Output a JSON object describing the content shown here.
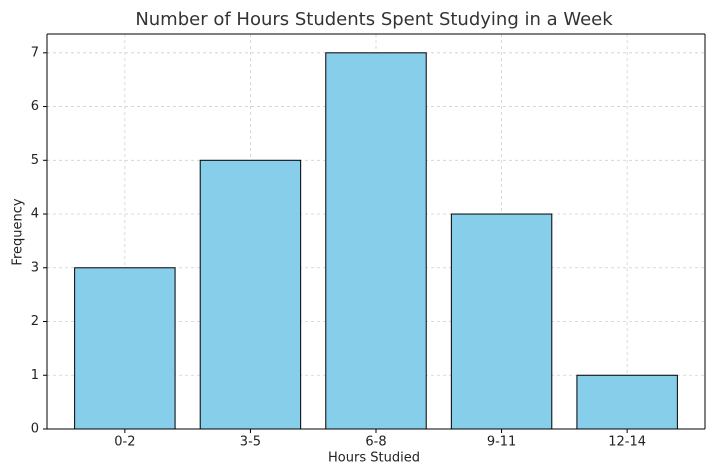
{
  "chart_data": {
    "type": "bar",
    "title": "Number of Hours Students Spent Studying in a Week",
    "x_label": "Hours Studied",
    "y_label": "Frequency",
    "categories": [
      "0-2",
      "3-5",
      "6-8",
      "9-11",
      "12-14"
    ],
    "values": [
      3,
      5,
      7,
      4,
      1
    ],
    "color": "#87ceeb",
    "edge_color": "#000000",
    "ylim": [
      0,
      7.35
    ],
    "yticks": [
      0,
      1,
      2,
      3,
      4,
      5,
      6,
      7
    ],
    "grid": true
  }
}
